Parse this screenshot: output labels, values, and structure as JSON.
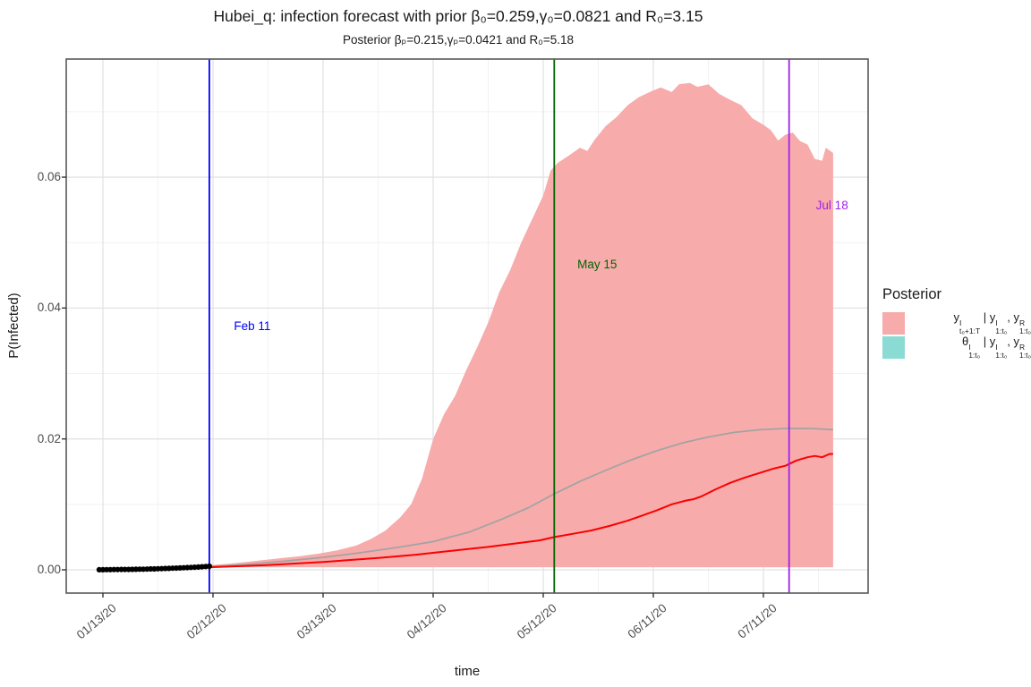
{
  "title": "Hubei_q: infection forecast with prior β₀=0.259,γ₀=0.0821 and R₀=3.15",
  "subtitle": "Posterior βₚ=0.215,γₚ=0.0421 and R₀=5.18",
  "legend": {
    "title": "Posterior",
    "entries": [
      {
        "name": "forecast-band",
        "swatch_color": "#f8abab",
        "tokens": [
          {
            "b": "y",
            "sup": "I",
            "sub": "t₀+1:T"
          },
          {
            "b": " | "
          },
          {
            "b": "y",
            "sup": "I",
            "sub": "1:t₀"
          },
          {
            "b": ", "
          },
          {
            "b": "y",
            "sup": "R",
            "sub": "1:t₀"
          }
        ]
      },
      {
        "name": "posterior-theta-band",
        "swatch_color": "#8adbd3",
        "tokens": [
          {
            "b": "θ",
            "sup": "I",
            "sub": "1:t₀"
          },
          {
            "b": " | "
          },
          {
            "b": "y",
            "sup": "I",
            "sub": "1:t₀"
          },
          {
            "b": ", "
          },
          {
            "b": "y",
            "sup": "R",
            "sub": "1:t₀"
          }
        ]
      }
    ]
  },
  "chart_data": {
    "type": "area",
    "xlabel": "time",
    "ylabel": "P(Infected)",
    "x_tick_labels": [
      "01/13/20",
      "02/12/20",
      "03/13/20",
      "04/12/20",
      "05/12/20",
      "06/11/20",
      "07/11/20"
    ],
    "x_minor_ticks": [
      "01/28/20",
      "02/27/20",
      "03/28/20",
      "04/27/20",
      "05/27/20",
      "06/26/20",
      "07/26/20"
    ],
    "y_ticks": [
      0,
      0.02,
      0.04,
      0.06
    ],
    "y_tick_labels": [
      "0.00",
      "0.02",
      "0.04",
      "0.06"
    ],
    "y_minor_ticks": [
      0.01,
      0.03,
      0.05,
      0.07
    ],
    "ylim": [
      -0.0035,
      0.078
    ],
    "grid": true,
    "legend_position": "right",
    "observed_points": {
      "name": "observed infection proportion",
      "color": "#000000",
      "start_date": "01/12/20",
      "values": [
        2e-05,
        2e-05,
        3e-05,
        3e-05,
        4e-05,
        4e-05,
        5e-05,
        5e-05,
        6e-05,
        7e-05,
        8e-05,
        9e-05,
        0.0001,
        0.00011,
        0.00013,
        0.00014,
        0.00016,
        0.00018,
        0.0002,
        0.00022,
        0.00024,
        0.00026,
        0.00029,
        0.00031,
        0.00034,
        0.00037,
        0.0004,
        0.00043,
        0.00046,
        0.0005,
        0.00054
      ]
    },
    "ribbon": {
      "name": "posterior forecast credible band",
      "fill": "#f8abab",
      "lower_bound": 0.0004,
      "upper": [
        [
          "02/11/20",
          0.0007
        ],
        [
          "02/16/20",
          0.0009
        ],
        [
          "02/21/20",
          0.0012
        ],
        [
          "02/26/20",
          0.0015
        ],
        [
          "03/02/20",
          0.0018
        ],
        [
          "03/07/20",
          0.0021
        ],
        [
          "03/12/20",
          0.0025
        ],
        [
          "03/17/20",
          0.003
        ],
        [
          "03/22/20",
          0.0037
        ],
        [
          "03/26/20",
          0.0047
        ],
        [
          "03/30/20",
          0.006
        ],
        [
          "04/03/20",
          0.008
        ],
        [
          "04/06/20",
          0.01
        ],
        [
          "04/09/20",
          0.014
        ],
        [
          "04/12/20",
          0.02
        ],
        [
          "04/15/20",
          0.0238
        ],
        [
          "04/18/20",
          0.0266
        ],
        [
          "04/21/20",
          0.0305
        ],
        [
          "04/24/20",
          0.034
        ],
        [
          "04/27/20",
          0.0378
        ],
        [
          "04/30/20",
          0.0424
        ],
        [
          "05/03/20",
          0.0458
        ],
        [
          "05/06/20",
          0.05
        ],
        [
          "05/09/20",
          0.0536
        ],
        [
          "05/12/20",
          0.0572
        ],
        [
          "05/14/20",
          0.061
        ],
        [
          "05/16/20",
          0.0622
        ],
        [
          "05/19/20",
          0.0633
        ],
        [
          "05/22/20",
          0.0645
        ],
        [
          "05/24/20",
          0.064
        ],
        [
          "05/26/20",
          0.0657
        ],
        [
          "05/29/20",
          0.0678
        ],
        [
          "06/01/20",
          0.0692
        ],
        [
          "06/04/20",
          0.071
        ],
        [
          "06/07/20",
          0.0722
        ],
        [
          "06/10/20",
          0.073
        ],
        [
          "06/13/20",
          0.0737
        ],
        [
          "06/16/20",
          0.073
        ],
        [
          "06/18/20",
          0.0742
        ],
        [
          "06/21/20",
          0.0744
        ],
        [
          "06/23/20",
          0.0738
        ],
        [
          "06/26/20",
          0.0742
        ],
        [
          "06/29/20",
          0.0727
        ],
        [
          "07/02/20",
          0.0718
        ],
        [
          "07/05/20",
          0.071
        ],
        [
          "07/08/20",
          0.069
        ],
        [
          "07/11/20",
          0.068
        ],
        [
          "07/13/20",
          0.0672
        ],
        [
          "07/15/20",
          0.0656
        ],
        [
          "07/17/20",
          0.0665
        ],
        [
          "07/19/20",
          0.0668
        ],
        [
          "07/21/20",
          0.0655
        ],
        [
          "07/23/20",
          0.065
        ],
        [
          "07/25/20",
          0.0628
        ],
        [
          "07/27/20",
          0.0625
        ],
        [
          "07/28/20",
          0.0645
        ],
        [
          "07/30/20",
          0.0637
        ]
      ]
    },
    "lines": [
      {
        "name": "posterior mean trajectory",
        "color": "#a3a3a3",
        "width": 1.8,
        "points": [
          [
            "02/11/20",
            0.0005
          ],
          [
            "02/21/20",
            0.0008
          ],
          [
            "03/02/20",
            0.0013
          ],
          [
            "03/13/20",
            0.0019
          ],
          [
            "03/23/20",
            0.0026
          ],
          [
            "04/02/20",
            0.0034
          ],
          [
            "04/12/20",
            0.0043
          ],
          [
            "04/22/20",
            0.0058
          ],
          [
            "05/01/20",
            0.0078
          ],
          [
            "05/08/20",
            0.0095
          ],
          [
            "05/15/20",
            0.0116
          ],
          [
            "05/22/20",
            0.0135
          ],
          [
            "05/29/20",
            0.0152
          ],
          [
            "06/05/20",
            0.0168
          ],
          [
            "06/12/20",
            0.0182
          ],
          [
            "06/19/20",
            0.0194
          ],
          [
            "06/26/20",
            0.0203
          ],
          [
            "07/03/20",
            0.021
          ],
          [
            "07/10/20",
            0.0214
          ],
          [
            "07/17/20",
            0.0216
          ],
          [
            "07/24/20",
            0.0216
          ],
          [
            "07/30/20",
            0.0214
          ]
        ]
      },
      {
        "name": "forecast median trajectory",
        "color": "#fa0000",
        "width": 2,
        "points": [
          [
            "02/11/20",
            0.0004
          ],
          [
            "02/26/20",
            0.0007
          ],
          [
            "03/13/20",
            0.0012
          ],
          [
            "03/28/20",
            0.0018
          ],
          [
            "04/07/20",
            0.0023
          ],
          [
            "04/17/20",
            0.0029
          ],
          [
            "04/27/20",
            0.0035
          ],
          [
            "05/04/20",
            0.004
          ],
          [
            "05/11/20",
            0.0045
          ],
          [
            "05/15/20",
            0.005
          ],
          [
            "05/20/20",
            0.0055
          ],
          [
            "05/25/20",
            0.006
          ],
          [
            "05/30/20",
            0.0067
          ],
          [
            "06/04/20",
            0.0075
          ],
          [
            "06/08/20",
            0.0083
          ],
          [
            "06/12/20",
            0.0091
          ],
          [
            "06/16/20",
            0.01
          ],
          [
            "06/20/20",
            0.0106
          ],
          [
            "06/22/20",
            0.0108
          ],
          [
            "06/24/20",
            0.0112
          ],
          [
            "06/28/20",
            0.0123
          ],
          [
            "07/02/20",
            0.0133
          ],
          [
            "07/06/20",
            0.0141
          ],
          [
            "07/10/20",
            0.0148
          ],
          [
            "07/14/20",
            0.0155
          ],
          [
            "07/17/20",
            0.0159
          ],
          [
            "07/20/20",
            0.0167
          ],
          [
            "07/23/20",
            0.0172
          ],
          [
            "07/25/20",
            0.0174
          ],
          [
            "07/27/20",
            0.0172
          ],
          [
            "07/29/20",
            0.0177
          ],
          [
            "07/30/20",
            0.0177
          ]
        ]
      }
    ],
    "vlines": [
      {
        "date": "02/11/20",
        "label": "Feb 11",
        "color": "#0000ff",
        "label_y": 0.0372
      },
      {
        "date": "05/15/20",
        "label": "May 15",
        "color": "#006400",
        "label_y": 0.0466
      },
      {
        "date": "07/18/20",
        "label": "Jul 18",
        "color": "#a020f0",
        "label_y": 0.0556
      }
    ]
  },
  "colors": {
    "ribbon_fill": "#f8abab",
    "theta_fill": "#8adbd3",
    "panel_border": "#595959",
    "grid_major": "#e3e3e3",
    "grid_minor": "#f2f2f2",
    "tick_text": "#4d4d4d"
  }
}
